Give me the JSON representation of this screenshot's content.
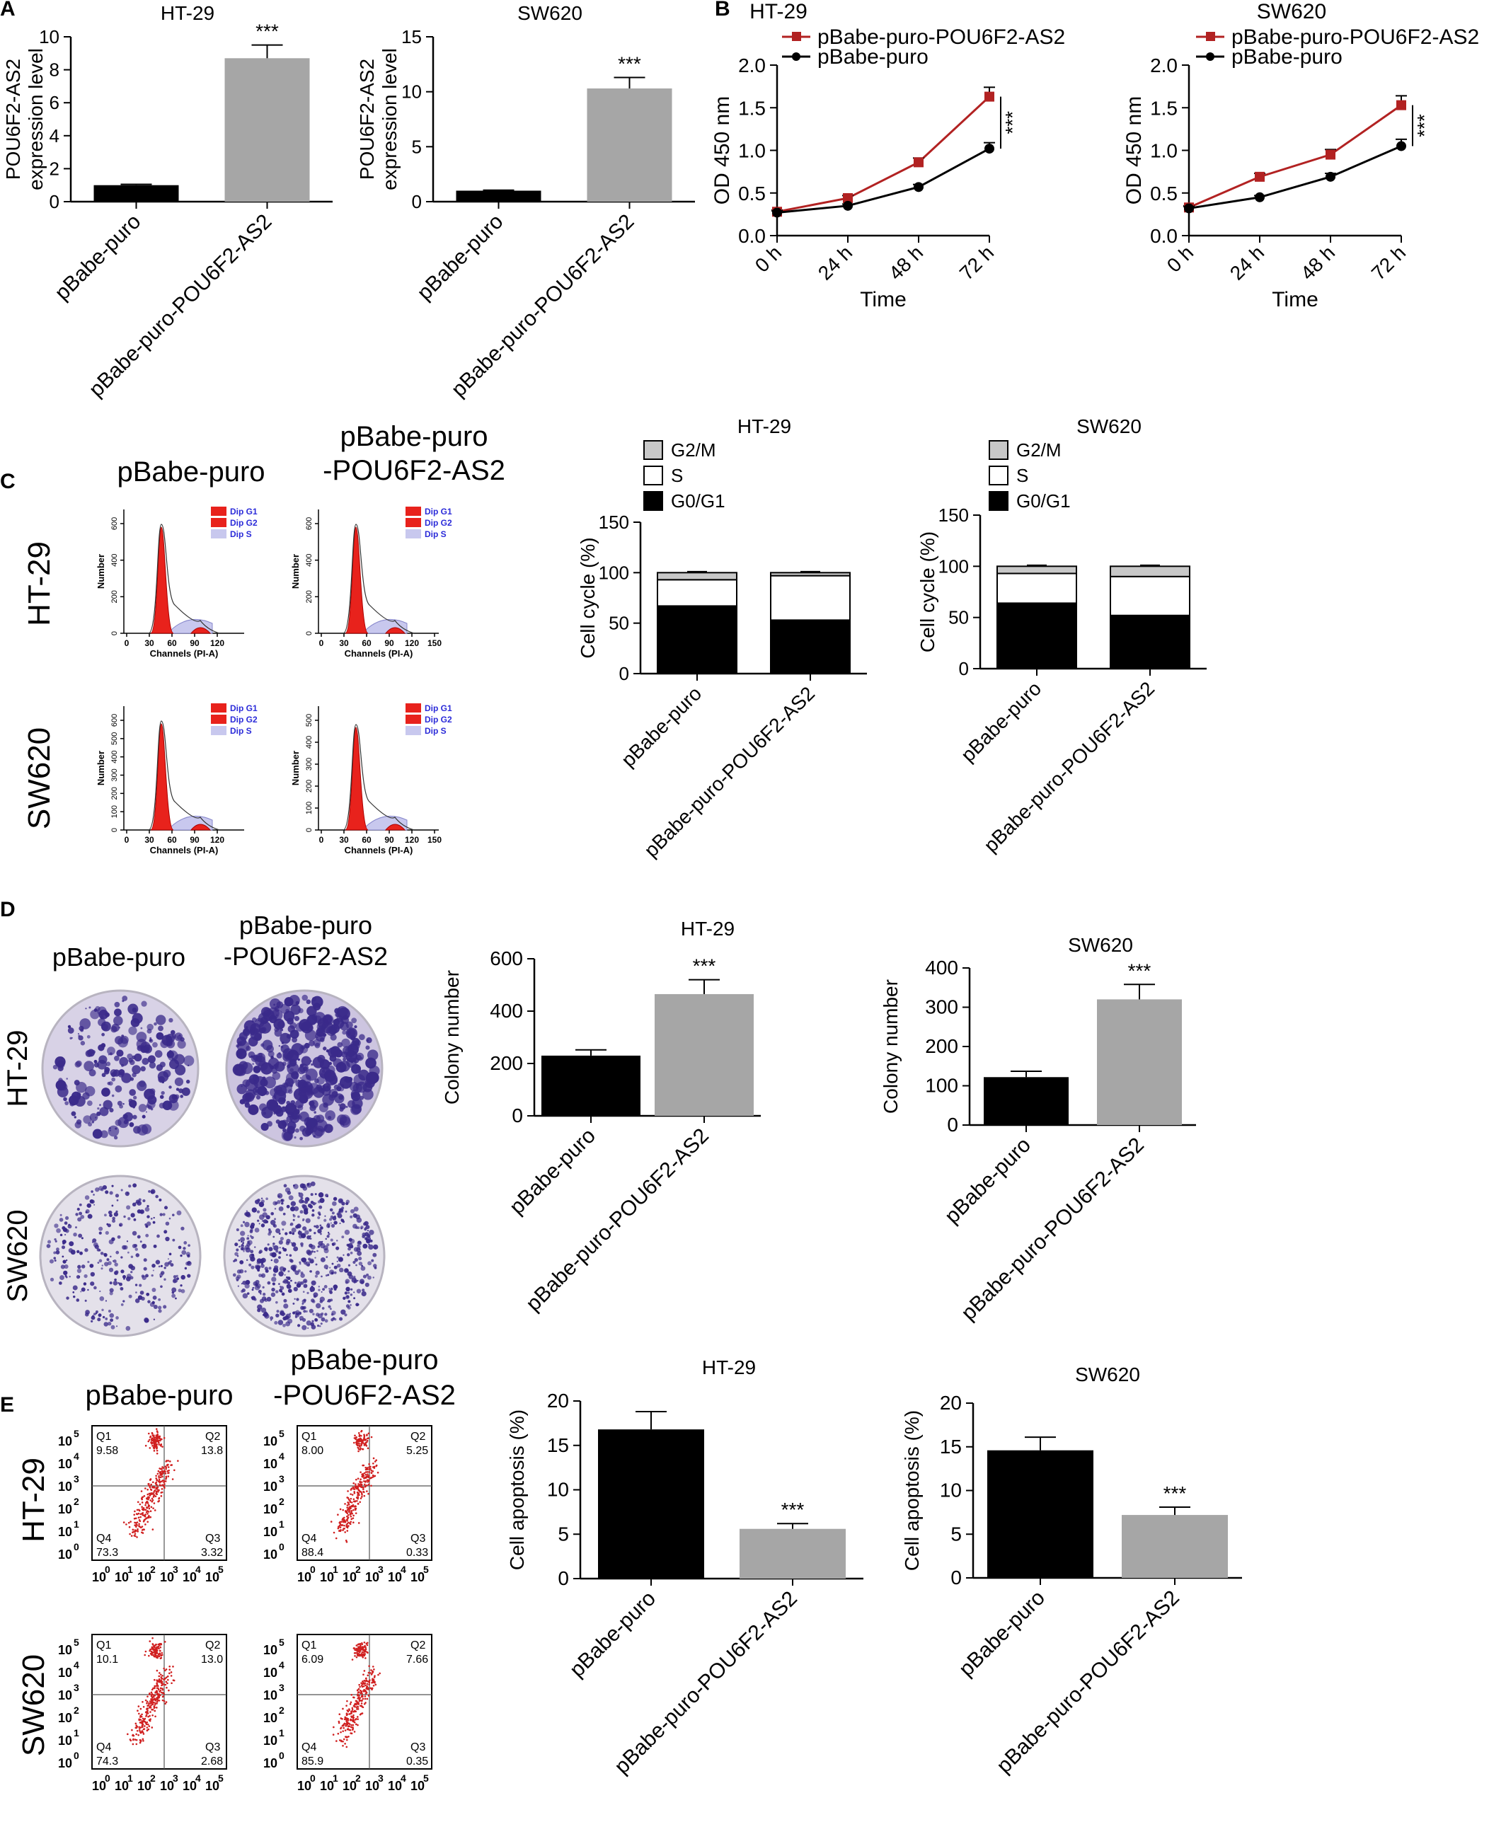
{
  "figure": {
    "panel_labels": [
      "A",
      "B",
      "C",
      "D",
      "E"
    ]
  },
  "groups": [
    "pBabe-puro",
    "pBabe-puro-POU6F2-AS2"
  ],
  "row_labels": [
    "HT-29",
    "SW620"
  ],
  "colors": {
    "black_bar": "#000000",
    "gray_bar": "#a6a6a6",
    "red_series": "#b22222",
    "flow_red": "#e8221c",
    "flow_blue": "#2b2bd9",
    "flow_s": "#c8c8ee",
    "colony_purple": "#3a2a8a",
    "dish_bg": "#e4e1ea"
  },
  "panel_c": {
    "col_titles": [
      "pBabe-puro",
      "pBabe-puro",
      "-POU6F2-AS2"
    ],
    "legend": [
      "Dip G1",
      "Dip G2",
      "Dip S"
    ],
    "ylabel": "Number",
    "xlabel": "Channels (PI-A)",
    "ht29_a_yticks": [
      "0",
      "200",
      "400",
      "600"
    ],
    "ht29_b_yticks": [
      "0",
      "200",
      "400",
      "600"
    ],
    "sw620_a_yticks": [
      "0",
      "100",
      "200",
      "300",
      "400",
      "500",
      "600"
    ],
    "sw620_b_yticks": [
      "0",
      "100",
      "200",
      "300",
      "400",
      "500"
    ],
    "xticks_a": [
      "0",
      "30",
      "60",
      "90",
      "120"
    ],
    "xticks_b": [
      "0",
      "30",
      "60",
      "90",
      "120",
      "150"
    ]
  },
  "panel_d": {
    "col_titles": [
      "pBabe-puro",
      "pBabe-puro",
      "-POU6F2-AS2"
    ]
  },
  "panel_e": {
    "col_titles": [
      "pBabe-puro",
      "pBabe-puro",
      "-POU6F2-AS2"
    ],
    "quadrants": [
      {
        "q1": "9.58",
        "q2": "13.8",
        "q3": "3.32",
        "q4": "73.3"
      },
      {
        "q1": "8.00",
        "q2": "5.25",
        "q3": "0.33",
        "q4": "88.4"
      },
      {
        "q1": "10.1",
        "q2": "13.0",
        "q3": "2.68",
        "q4": "74.3"
      },
      {
        "q1": "6.09",
        "q2": "7.66",
        "q3": "0.35",
        "q4": "85.9"
      }
    ],
    "quad_names": [
      "Q1",
      "Q2",
      "Q3",
      "Q4"
    ],
    "axis_ticks": [
      "10",
      "0",
      "10",
      "1",
      "10",
      "2",
      "10",
      "3",
      "10",
      "4",
      "10",
      "5"
    ]
  },
  "chart_data": [
    {
      "id": "A1",
      "type": "bar",
      "title": "HT-29",
      "ylabel": "POU6F2-AS2 expression level",
      "ylim": [
        0,
        10
      ],
      "yticks": [
        0,
        2,
        4,
        6,
        8,
        10
      ],
      "categories": [
        "pBabe-puro",
        "pBabe-puro-POU6F2-AS2"
      ],
      "values": [
        1.0,
        8.7
      ],
      "errors": [
        0.05,
        0.8
      ],
      "sig": "***"
    },
    {
      "id": "A2",
      "type": "bar",
      "title": "SW620",
      "ylabel": "POU6F2-AS2 expression level",
      "ylim": [
        0,
        15
      ],
      "yticks": [
        0,
        5,
        10,
        15
      ],
      "categories": [
        "pBabe-puro",
        "pBabe-puro-POU6F2-AS2"
      ],
      "values": [
        1.0,
        10.3
      ],
      "errors": [
        0.05,
        1.0
      ],
      "sig": "***"
    },
    {
      "id": "B1",
      "type": "line",
      "title": "HT-29",
      "xlabel": "Time",
      "ylabel": "OD 450 nm",
      "ylim": [
        0,
        2.0
      ],
      "yticks": [
        0.0,
        0.5,
        1.0,
        1.5,
        2.0
      ],
      "x": [
        "0 h",
        "24 h",
        "48 h",
        "72 h"
      ],
      "sig": "***",
      "series": [
        {
          "name": "pBabe-puro-POU6F2-AS2",
          "values": [
            0.28,
            0.44,
            0.86,
            1.63
          ],
          "errors": [
            0.02,
            0.03,
            0.05,
            0.11
          ]
        },
        {
          "name": "pBabe-puro",
          "values": [
            0.27,
            0.35,
            0.57,
            1.02
          ],
          "errors": [
            0.02,
            0.02,
            0.03,
            0.07
          ]
        }
      ]
    },
    {
      "id": "B2",
      "type": "line",
      "title": "SW620",
      "xlabel": "Time",
      "ylabel": "OD 450 nm",
      "ylim": [
        0,
        2.0
      ],
      "yticks": [
        0.0,
        0.5,
        1.0,
        1.5,
        2.0
      ],
      "x": [
        "0 h",
        "24 h",
        "48 h",
        "72 h"
      ],
      "sig": "***",
      "series": [
        {
          "name": "pBabe-puro-POU6F2-AS2",
          "values": [
            0.33,
            0.69,
            0.95,
            1.53
          ],
          "errors": [
            0.02,
            0.04,
            0.06,
            0.11
          ]
        },
        {
          "name": "pBabe-puro",
          "values": [
            0.32,
            0.45,
            0.69,
            1.05
          ],
          "errors": [
            0.02,
            0.02,
            0.04,
            0.08
          ]
        }
      ]
    },
    {
      "id": "C1",
      "type": "bar",
      "stacked": true,
      "title": "HT-29",
      "ylabel": "Cell cycle (%)",
      "ylim": [
        0,
        150
      ],
      "yticks": [
        0,
        50,
        100,
        150
      ],
      "categories": [
        "pBabe-puro",
        "pBabe-puro-POU6F2-AS2"
      ],
      "series": [
        {
          "name": "G0/G1",
          "values": [
            67,
            53
          ],
          "errors": [
            7,
            5
          ]
        },
        {
          "name": "S",
          "values": [
            26,
            44
          ],
          "errors": [
            2,
            1
          ]
        },
        {
          "name": "G2/M",
          "values": [
            7,
            3
          ],
          "errors": [
            1,
            1
          ]
        }
      ]
    },
    {
      "id": "C2",
      "type": "bar",
      "stacked": true,
      "title": "SW620",
      "ylabel": "Cell cycle (%)",
      "ylim": [
        0,
        150
      ],
      "yticks": [
        0,
        50,
        100,
        150
      ],
      "categories": [
        "pBabe-puro",
        "pBabe-puro-POU6F2-AS2"
      ],
      "series": [
        {
          "name": "G0/G1",
          "values": [
            64,
            52
          ],
          "errors": [
            6,
            5
          ]
        },
        {
          "name": "S",
          "values": [
            29,
            38
          ],
          "errors": [
            2,
            2
          ]
        },
        {
          "name": "G2/M",
          "values": [
            7,
            10
          ],
          "errors": [
            1,
            1
          ]
        }
      ]
    },
    {
      "id": "D1",
      "type": "bar",
      "title": "HT-29",
      "ylabel": "Colony number",
      "ylim": [
        0,
        600
      ],
      "yticks": [
        0,
        200,
        400,
        600
      ],
      "categories": [
        "pBabe-puro",
        "pBabe-puro-POU6F2-AS2"
      ],
      "values": [
        230,
        465
      ],
      "errors": [
        22,
        55
      ],
      "sig": "***"
    },
    {
      "id": "D2",
      "type": "bar",
      "title": "SW620",
      "ylabel": "Colony number",
      "ylim": [
        0,
        400
      ],
      "yticks": [
        0,
        100,
        200,
        300,
        400
      ],
      "categories": [
        "pBabe-puro",
        "pBabe-puro-POU6F2-AS2"
      ],
      "values": [
        122,
        320
      ],
      "errors": [
        15,
        38
      ],
      "sig": "***"
    },
    {
      "id": "E1",
      "type": "bar",
      "title": "HT-29",
      "ylabel": "Cell apoptosis (%)",
      "ylim": [
        0,
        20
      ],
      "yticks": [
        0,
        5,
        10,
        15,
        20
      ],
      "categories": [
        "pBabe-puro",
        "pBabe-puro-POU6F2-AS2"
      ],
      "values": [
        16.8,
        5.6
      ],
      "errors": [
        2.0,
        0.6
      ],
      "sig": "***"
    },
    {
      "id": "E2",
      "type": "bar",
      "title": "SW620",
      "ylabel": "Cell apoptosis (%)",
      "ylim": [
        0,
        20
      ],
      "yticks": [
        0,
        5,
        10,
        15,
        20
      ],
      "categories": [
        "pBabe-puro",
        "pBabe-puro-POU6F2-AS2"
      ],
      "values": [
        14.6,
        7.2
      ],
      "errors": [
        1.5,
        0.9
      ],
      "sig": "***"
    }
  ]
}
